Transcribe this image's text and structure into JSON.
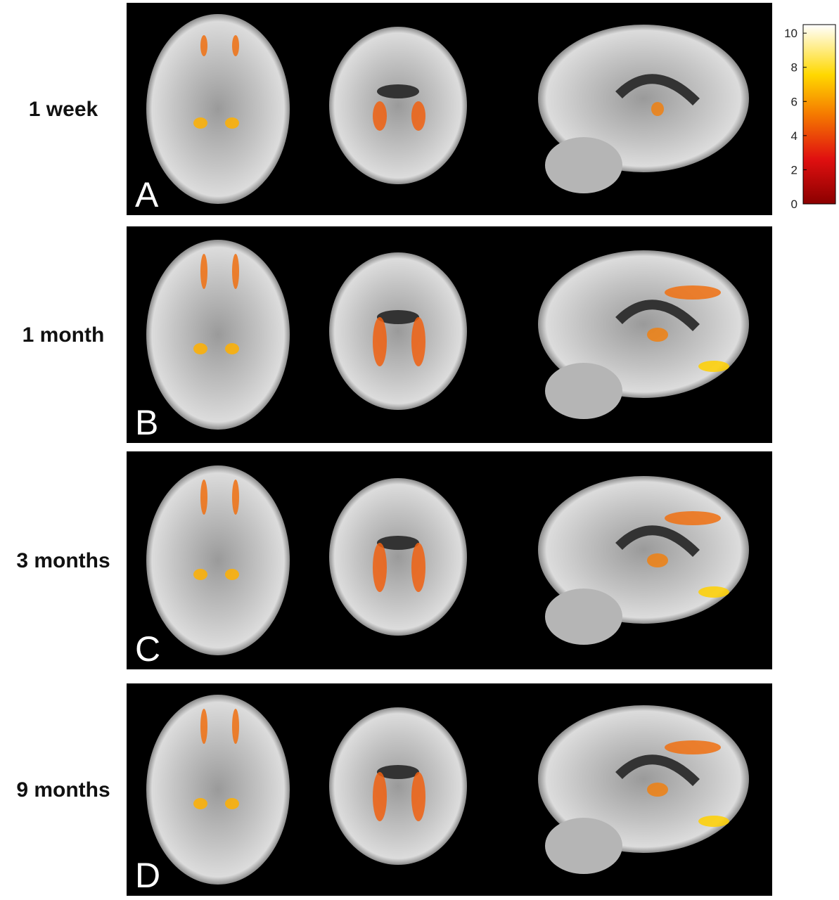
{
  "figure": {
    "rows": [
      {
        "label": "1 week",
        "letter": "A"
      },
      {
        "label": "1 month",
        "letter": "B"
      },
      {
        "label": "3 months",
        "letter": "C"
      },
      {
        "label": "9 months",
        "letter": "D"
      }
    ]
  },
  "colorbar": {
    "lim": [
      0,
      10.5
    ],
    "ticks": [
      0,
      2,
      4,
      6,
      8,
      10
    ]
  }
}
